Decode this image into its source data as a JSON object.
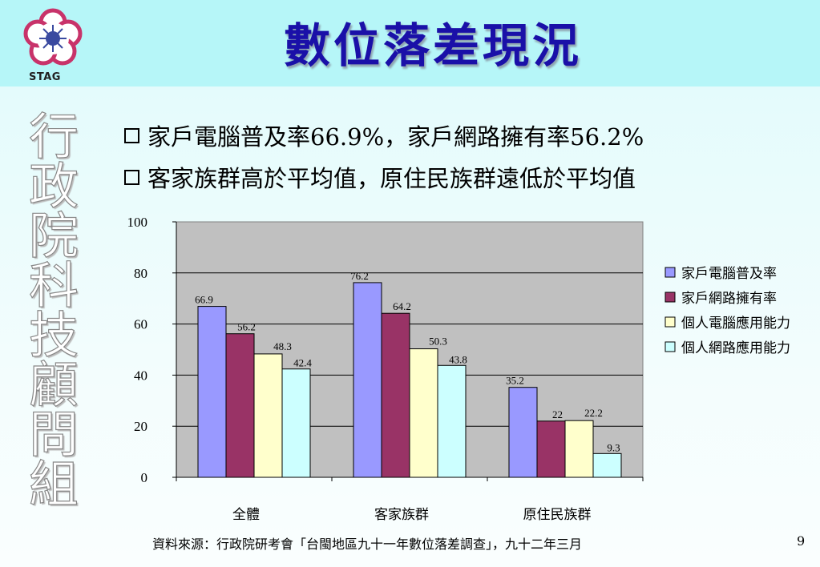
{
  "header": {
    "title": "數位落差現況",
    "logo_text": "STAG",
    "colors": {
      "background": "#b6f6f8",
      "title": "#1a10a8"
    }
  },
  "sidebar": {
    "title_chars": [
      "行",
      "政",
      "院",
      "科",
      "技",
      "顧",
      "問",
      "組"
    ]
  },
  "bullets": [
    "家戶電腦普及率66.9%，家戶網路擁有率56.2%",
    "客家族群高於平均值，原住民族群遠低於平均值"
  ],
  "chart_data": {
    "type": "bar",
    "categories": [
      "全體",
      "客家族群",
      "原住民族群"
    ],
    "series": [
      {
        "name": "家戶電腦普及率",
        "color": "#9999ff",
        "values": [
          66.9,
          76.2,
          35.2
        ]
      },
      {
        "name": "家戶網路擁有率",
        "color": "#993366",
        "values": [
          56.2,
          64.2,
          22
        ]
      },
      {
        "name": "個人電腦應用能力",
        "color": "#ffffcc",
        "values": [
          48.3,
          50.3,
          22.2
        ]
      },
      {
        "name": "個人網路應用能力",
        "color": "#ccffff",
        "values": [
          42.4,
          43.8,
          9.3
        ]
      }
    ],
    "data_labels": [
      [
        "66.9",
        "76.2",
        "35.2"
      ],
      [
        "56.2",
        "64.2",
        "22"
      ],
      [
        "48.3",
        "50.3",
        "22.2"
      ],
      [
        "42.4",
        "43.8",
        "9.3"
      ]
    ],
    "yticks": [
      "0",
      "20",
      "40",
      "60",
      "80",
      "100"
    ],
    "ylim": [
      0,
      100
    ],
    "grid": true,
    "legend": "right",
    "plot_background": "#c0c0c0"
  },
  "footer": {
    "source": "資料來源：行政院研考會「台閩地區九十一年數位落差調查」，九十二年三月",
    "page_number": "9"
  }
}
